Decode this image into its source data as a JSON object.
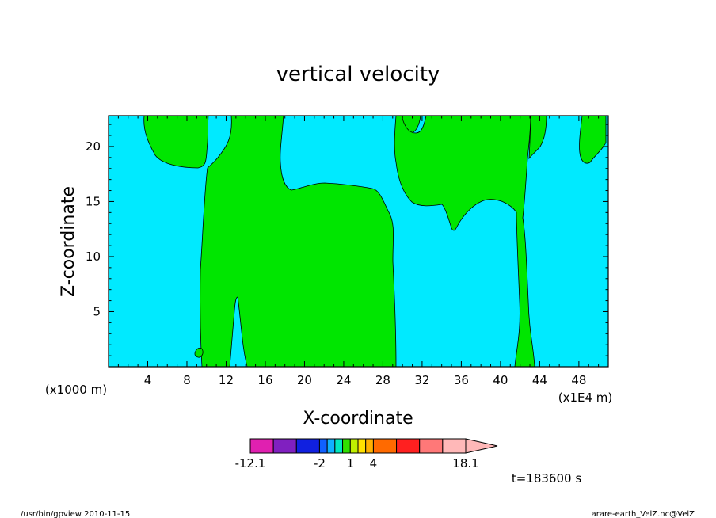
{
  "chart_data": {
    "type": "contour",
    "title": "vertical velocity",
    "xlabel": "X-coordinate",
    "ylabel": "Z-coordinate",
    "x_unit": "(x1E4 m)",
    "y_unit": "(x1000 m)",
    "x_ticks": [
      "4",
      "8",
      "12",
      "16",
      "20",
      "24",
      "28",
      "32",
      "36",
      "40",
      "44",
      "48"
    ],
    "y_ticks": [
      "5",
      "10",
      "15",
      "20"
    ],
    "xlim": [
      0,
      51
    ],
    "ylim": [
      0,
      22.8
    ],
    "colorbar": {
      "tick_labels": [
        {
          "text": "-12.1",
          "at": -12.1
        },
        {
          "text": "-2",
          "at": -2
        },
        {
          "text": "1",
          "at": 1
        },
        {
          "text": "4",
          "at": 4
        },
        {
          "text": "18.1",
          "at": 18.1
        }
      ],
      "colors": [
        "#e020b0",
        "#8020c0",
        "#1020e0",
        "#1060ff",
        "#10b0ff",
        "#00e8c0",
        "#30e000",
        "#c0f000",
        "#ffe000",
        "#ffb000",
        "#ff6a00",
        "#ff2020",
        "#ff7878",
        "#ffb8b8"
      ]
    },
    "fill_colors": {
      "negative": "#00eaff",
      "positive": "#00e600"
    },
    "time_label": "t=183600 s"
  },
  "footer": {
    "left": "/usr/bin/gpview   2010-11-15",
    "right": "arare-earth_VelZ.nc@VelZ"
  }
}
